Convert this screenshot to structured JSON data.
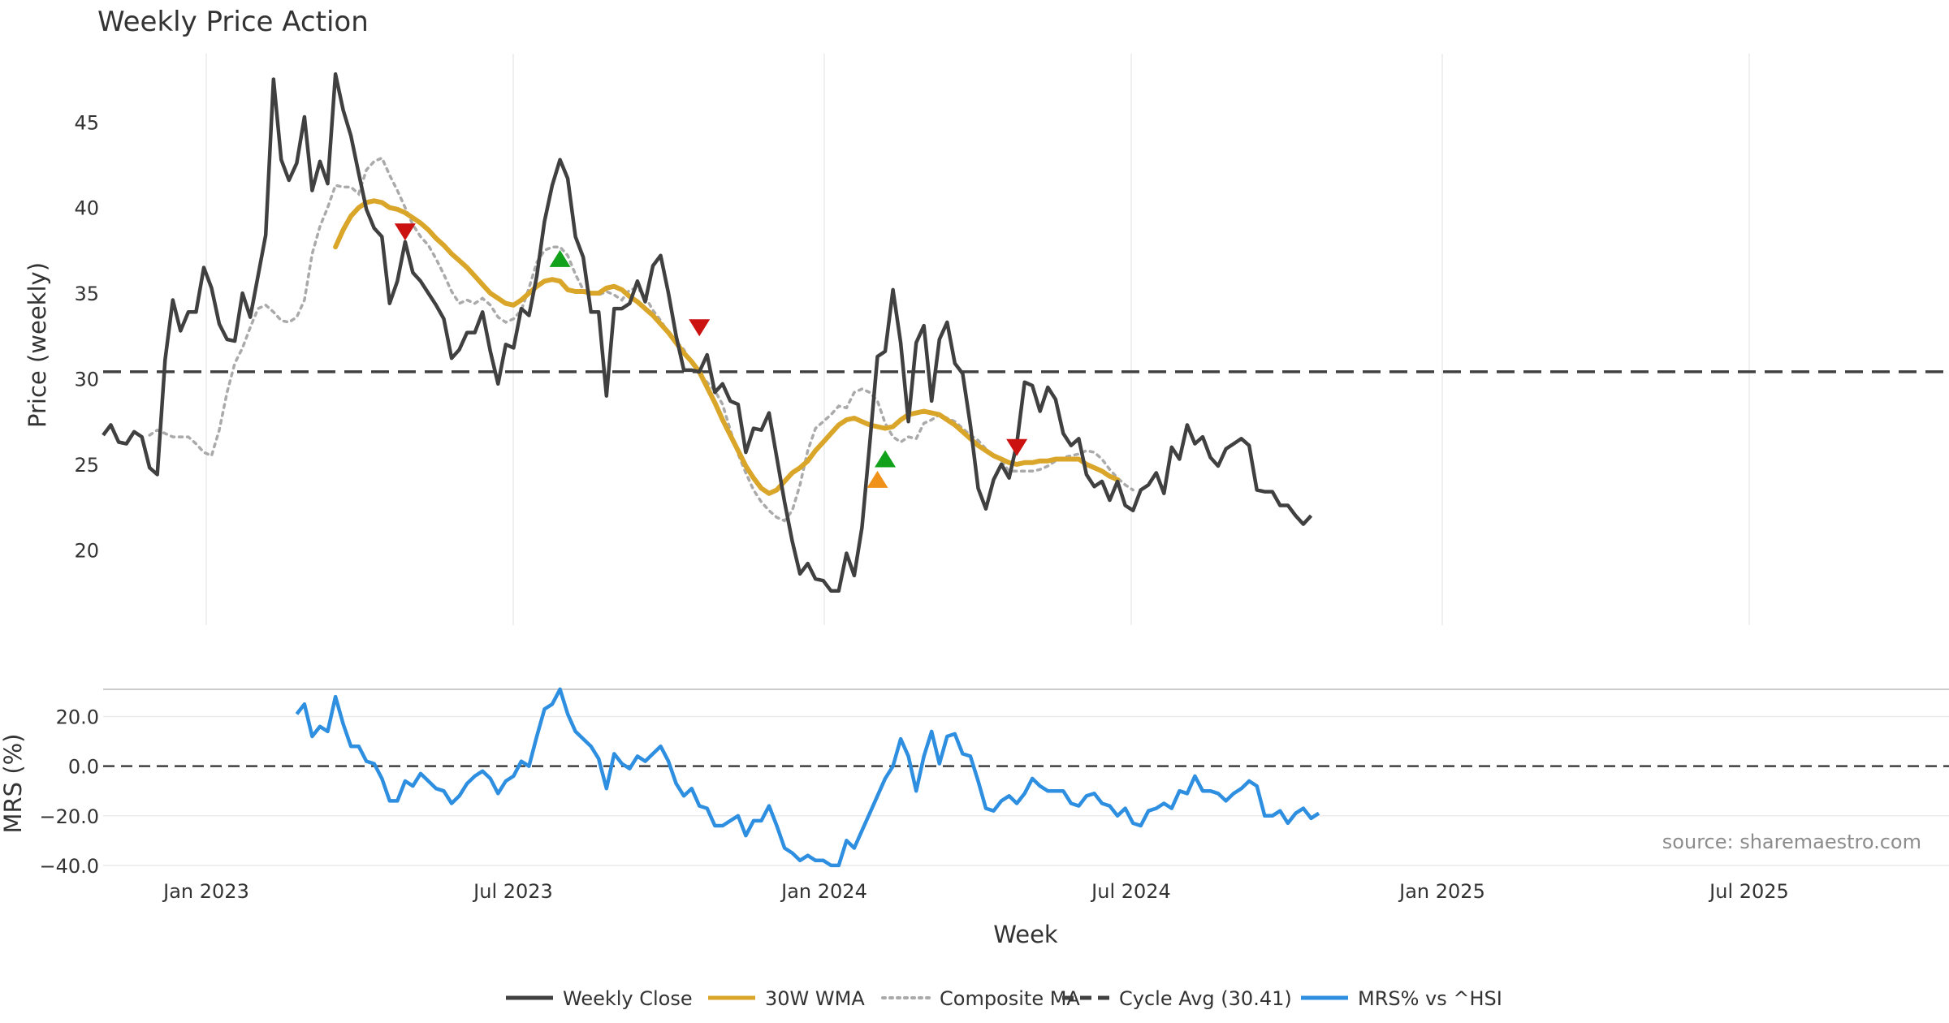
{
  "chart_data": {
    "type": "line",
    "title": "Weekly Price Action",
    "xlabel": "Week",
    "source_note": "source: sharemaestro.com",
    "x_ticks": [
      "Jan 2023",
      "Jul 2023",
      "Jan 2024",
      "Jul 2024",
      "Jan 2025",
      "Jul 2025"
    ],
    "price_panel": {
      "ylabel": "Price (weekly)",
      "ylim": [
        15.6,
        49
      ],
      "y_ticks": [
        20,
        25,
        30,
        35,
        40,
        45
      ],
      "cycle_avg": 30.41,
      "weekly_close": [
        26.7,
        27.3,
        26.3,
        26.2,
        26.9,
        26.6,
        24.8,
        24.4,
        31.1,
        34.6,
        32.8,
        33.9,
        33.9,
        36.5,
        35.3,
        33.2,
        32.3,
        32.2,
        35.0,
        33.6,
        36.0,
        38.4,
        47.5,
        42.8,
        41.6,
        42.6,
        45.3,
        41.0,
        42.7,
        41.4,
        47.8,
        45.7,
        44.2,
        42.0,
        39.9,
        38.8,
        38.3,
        34.4,
        35.7,
        38.0,
        36.2,
        35.7,
        35.0,
        34.3,
        33.5,
        31.2,
        31.7,
        32.7,
        32.7,
        33.9,
        31.6,
        29.7,
        32.0,
        31.8,
        34.1,
        33.7,
        36.0,
        39.2,
        41.3,
        42.8,
        41.7,
        38.3,
        37.1,
        33.9,
        33.9,
        29.0,
        34.1,
        34.1,
        34.4,
        35.7,
        34.5,
        36.6,
        37.2,
        35.0,
        32.5,
        30.5,
        30.5,
        30.4,
        31.4,
        29.2,
        29.7,
        28.7,
        28.5,
        25.7,
        27.1,
        27.0,
        28.0,
        25.4,
        22.8,
        20.5,
        18.6,
        19.2,
        18.3,
        18.2,
        17.6,
        17.6,
        19.8,
        18.5,
        21.3,
        26.2,
        31.3,
        31.6,
        35.2,
        32.1,
        27.5,
        32.1,
        33.1,
        28.7,
        32.3,
        33.3,
        30.9,
        30.3,
        27.3,
        23.6,
        22.4,
        24.1,
        25.0,
        24.2,
        26.2,
        29.8,
        29.6,
        28.1,
        29.5,
        28.8,
        26.8,
        26.1,
        26.5,
        24.4,
        23.7,
        24.0,
        22.9,
        24.0,
        22.6,
        22.3,
        23.5,
        23.8,
        24.5,
        23.3,
        26.0,
        25.3,
        27.3,
        26.2,
        26.6,
        25.4,
        24.9,
        25.9,
        26.2,
        26.5,
        26.1,
        23.5,
        23.4,
        23.4,
        22.6,
        22.6,
        22.0,
        21.5,
        22.0
      ],
      "wma_30w": [
        37.7,
        38.7,
        39.5,
        40.0,
        40.3,
        40.4,
        40.3,
        40.0,
        39.9,
        39.7,
        39.4,
        39.1,
        38.7,
        38.2,
        37.8,
        37.3,
        36.9,
        36.5,
        36.0,
        35.5,
        35.0,
        34.7,
        34.4,
        34.3,
        34.6,
        35.0,
        35.4,
        35.7,
        35.8,
        35.7,
        35.2,
        35.1,
        35.1,
        35.0,
        35.0,
        35.3,
        35.4,
        35.2,
        34.8,
        34.5,
        34.1,
        33.7,
        33.2,
        32.7,
        32.1,
        31.5,
        31.0,
        30.4,
        29.5,
        28.6,
        27.6,
        26.7,
        25.8,
        24.9,
        24.2,
        23.6,
        23.3,
        23.5,
        24.0,
        24.5,
        24.8,
        25.2,
        25.8,
        26.3,
        26.8,
        27.3,
        27.6,
        27.7,
        27.5,
        27.3,
        27.2,
        27.1,
        27.2,
        27.6,
        27.9,
        28.0,
        28.1,
        28.0,
        27.9,
        27.6,
        27.3,
        26.9,
        26.5,
        26.1,
        25.8,
        25.5,
        25.3,
        25.1,
        25.0,
        25.1,
        25.1,
        25.2,
        25.2,
        25.3,
        25.3,
        25.3,
        25.3,
        25.0,
        24.8,
        24.6,
        24.3,
        24.1
      ],
      "wma_start_index": 30,
      "composite_ma": [
        26.7,
        27.0,
        26.8,
        26.6,
        26.6,
        26.6,
        26.2,
        25.7,
        25.5,
        27.0,
        29.2,
        30.9,
        31.8,
        33.0,
        34.1,
        34.3,
        33.9,
        33.4,
        33.3,
        33.6,
        34.6,
        37.3,
        38.9,
        40.0,
        41.3,
        41.2,
        41.2,
        40.8,
        42.2,
        42.7,
        42.9,
        41.9,
        41.0,
        40.0,
        39.0,
        38.3,
        37.8,
        37.0,
        36.1,
        35.1,
        34.4,
        34.6,
        34.4,
        34.7,
        34.3,
        33.6,
        33.3,
        33.5,
        34.0,
        35.3,
        36.8,
        37.5,
        37.7,
        37.7,
        37.2,
        36.1,
        35.2,
        35.0,
        34.9,
        35.1,
        34.9,
        34.6,
        35.2,
        35.3,
        34.8,
        34.0,
        33.4,
        32.7,
        32.2,
        31.7,
        30.9,
        30.2,
        29.8,
        29.3,
        28.5,
        27.0,
        25.6,
        24.5,
        23.5,
        22.8,
        22.3,
        21.9,
        21.7,
        22.3,
        23.8,
        25.8,
        27.1,
        27.5,
        27.9,
        28.4,
        28.3,
        29.2,
        29.4,
        29.2,
        28.7,
        27.4,
        26.6,
        26.3,
        26.6,
        26.5,
        27.4,
        27.6,
        27.9,
        27.7,
        27.5,
        27.1,
        26.7,
        26.4,
        25.9,
        25.5,
        25.2,
        24.6,
        24.6,
        24.6,
        24.6,
        24.7,
        24.9,
        25.2,
        25.4,
        25.5,
        25.6,
        25.8,
        25.7,
        25.3,
        24.7,
        24.2,
        23.8,
        23.5
      ],
      "composite_start_index": 6,
      "sell_signals": [
        {
          "x": 39,
          "y": 38.6
        },
        {
          "x": 77,
          "y": 33.0
        },
        {
          "x": 118,
          "y": 26.0
        }
      ],
      "buy_signals": [
        {
          "x": 59,
          "y": 37.0
        },
        {
          "x": 101,
          "y": 25.3
        }
      ],
      "neutral_signals": [
        {
          "x": 100,
          "y": 24.1
        }
      ]
    },
    "mrs_panel": {
      "ylabel": "MRS (%)",
      "ylim": [
        -42,
        30
      ],
      "y_ticks": [
        -40,
        -20,
        0,
        20
      ],
      "y_tick_labels": [
        "−40.0",
        "−20.0",
        "0.0",
        "20.0"
      ],
      "start_index": 25,
      "mrs_values": [
        21,
        25,
        12,
        16,
        14,
        28,
        17,
        8,
        8,
        2,
        1,
        -5,
        -14,
        -14,
        -6,
        -8,
        -3,
        -6,
        -9,
        -10,
        -15,
        -12,
        -7,
        -4,
        -2,
        -5,
        -11,
        -6,
        -4,
        2,
        0,
        12,
        23,
        25,
        31,
        21,
        14,
        11,
        8,
        3,
        -9,
        5,
        1,
        -1,
        4,
        2,
        5,
        8,
        2,
        -7,
        -12,
        -9,
        -16,
        -17,
        -24,
        -24,
        -22,
        -20,
        -28,
        -22,
        -22,
        -16,
        -24,
        -33,
        -35,
        -38,
        -36,
        -38,
        -38,
        -40,
        -40,
        -30,
        -33,
        -26,
        -19,
        -12,
        -5,
        0,
        11,
        4,
        -10,
        4,
        14,
        1,
        12,
        13,
        5,
        4,
        -6,
        -17,
        -18,
        -14,
        -12,
        -15,
        -11,
        -5,
        -8,
        -10,
        -10,
        -10,
        -15,
        -16,
        -12,
        -11,
        -15,
        -16,
        -20,
        -17,
        -23,
        -24,
        -18,
        -17,
        -15,
        -17,
        -10,
        -11,
        -4,
        -10,
        -10,
        -11,
        -14,
        -11,
        -9,
        -6,
        -8,
        -20,
        -20,
        -18,
        -23,
        -19,
        -17,
        -21,
        -19
      ]
    },
    "legend": [
      {
        "label": "Weekly Close",
        "style": "solid",
        "color": "#404040"
      },
      {
        "label": "30W WMA",
        "style": "solid",
        "color": "#d9a62a"
      },
      {
        "label": "Composite MA",
        "style": "dotted",
        "color": "#aaaaaa"
      },
      {
        "label": "Cycle Avg (30.41)",
        "style": "dashed",
        "color": "#404040"
      },
      {
        "label": "MRS% vs ^HSI",
        "style": "solid",
        "color": "#2e8fe0"
      }
    ],
    "colors": {
      "close": "#404040",
      "wma": "#d9a62a",
      "composite": "#aaaaaa",
      "cycle": "#404040",
      "mrs": "#2e8fe0",
      "sell": "#cc1111",
      "buy": "#11a11a",
      "neutral": "#f0921a"
    }
  }
}
